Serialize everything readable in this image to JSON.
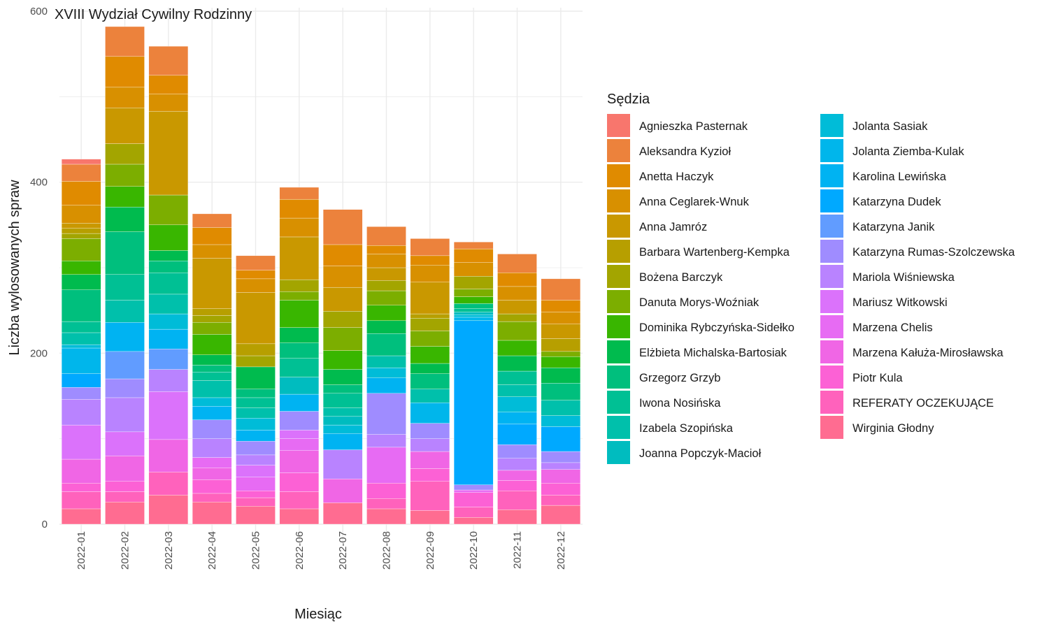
{
  "chart_data": {
    "type": "bar",
    "stacked": true,
    "title": "XVIII Wydział Cywilny Rodzinny",
    "xlabel": "Miesiąc",
    "ylabel": "Liczba wylosowanych spraw",
    "ylim": [
      0,
      600
    ],
    "yticks": [
      0,
      200,
      400,
      600
    ],
    "grid": true,
    "legend_title": "Sędzia",
    "legend_position": "right",
    "categories": [
      "2022-01",
      "2022-02",
      "2022-03",
      "2022-04",
      "2022-05",
      "2022-06",
      "2022-07",
      "2022-08",
      "2022-09",
      "2022-10",
      "2022-11",
      "2022-12"
    ],
    "series": [
      {
        "name": "Agnieszka Pasternak",
        "color": "#F8766D",
        "values": [
          6,
          0,
          0,
          0,
          0,
          0,
          0,
          0,
          0,
          0,
          0,
          0
        ]
      },
      {
        "name": "Aleksandra Kyzioł",
        "color": "#EC823C",
        "values": [
          20,
          35,
          34,
          16,
          17,
          14,
          41,
          22,
          20,
          8,
          22,
          25
        ]
      },
      {
        "name": "Anetta Haczyk",
        "color": "#E08B00",
        "values": [
          28,
          36,
          22,
          20,
          10,
          22,
          25,
          10,
          11,
          16,
          16,
          14
        ]
      },
      {
        "name": "Anna Ceglarek-Wnuk",
        "color": "#D89000",
        "values": [
          21,
          24,
          20,
          16,
          16,
          22,
          25,
          16,
          20,
          16,
          16,
          14
        ]
      },
      {
        "name": "Anna Jamróz",
        "color": "#C99800",
        "values": [
          6,
          42,
          98,
          59,
          60,
          50,
          28,
          15,
          37,
          0,
          16,
          17
        ]
      },
      {
        "name": "Barbara Wartenberg-Kempka",
        "color": "#B79F00",
        "values": [
          6,
          0,
          0,
          8,
          14,
          0,
          0,
          0,
          5,
          0,
          0,
          15
        ]
      },
      {
        "name": "Bożena Barczyk",
        "color": "#A3A500",
        "values": [
          6,
          24,
          0,
          8,
          13,
          14,
          19,
          12,
          15,
          15,
          9,
          0
        ]
      },
      {
        "name": "Danuta Morys-Woźniak",
        "color": "#7CAE00",
        "values": [
          26,
          26,
          35,
          14,
          0,
          10,
          27,
          17,
          18,
          9,
          22,
          6
        ]
      },
      {
        "name": "Dominika Rybczyńska-Sidełko",
        "color": "#39B600",
        "values": [
          16,
          24,
          30,
          24,
          0,
          32,
          22,
          18,
          20,
          8,
          18,
          13
        ]
      },
      {
        "name": "Elżbieta Michalska-Bartosiak",
        "color": "#00BB4E",
        "values": [
          18,
          29,
          12,
          12,
          26,
          18,
          18,
          15,
          12,
          0,
          18,
          18
        ]
      },
      {
        "name": "Grzegorz Grzyb",
        "color": "#00BF7D",
        "values": [
          37,
          50,
          14,
          8,
          10,
          18,
          10,
          26,
          18,
          6,
          0,
          20
        ]
      },
      {
        "name": "Iwona Nosińska",
        "color": "#00C094",
        "values": [
          13,
          30,
          25,
          10,
          12,
          22,
          17,
          0,
          0,
          4,
          16,
          0
        ]
      },
      {
        "name": "Izabela Szopińska",
        "color": "#00C0AB",
        "values": [
          14,
          26,
          23,
          20,
          12,
          0,
          10,
          14,
          16,
          0,
          14,
          18
        ]
      },
      {
        "name": "Joanna Popczyk-Macioł",
        "color": "#00BCBF",
        "values": [
          0,
          0,
          0,
          0,
          0,
          20,
          10,
          0,
          0,
          3,
          0,
          0
        ]
      },
      {
        "name": "Jolanta Sasiak",
        "color": "#00BCD8",
        "values": [
          4,
          0,
          18,
          10,
          14,
          0,
          10,
          12,
          0,
          3,
          18,
          13
        ]
      },
      {
        "name": "Jolanta Ziemba-Kulak",
        "color": "#00B6EB",
        "values": [
          30,
          0,
          0,
          0,
          0,
          0,
          0,
          0,
          24,
          4,
          0,
          0
        ]
      },
      {
        "name": "Karolina Lewińska",
        "color": "#00B3F2",
        "values": [
          0,
          34,
          23,
          16,
          13,
          20,
          19,
          18,
          0,
          0,
          14,
          0
        ]
      },
      {
        "name": "Katarzyna Dudek",
        "color": "#00A9FF",
        "values": [
          16,
          0,
          0,
          0,
          0,
          0,
          0,
          0,
          0,
          192,
          24,
          29
        ]
      },
      {
        "name": "Katarzyna Janik",
        "color": "#619CFF",
        "values": [
          0,
          32,
          24,
          0,
          0,
          0,
          0,
          0,
          0,
          0,
          0,
          0
        ]
      },
      {
        "name": "Katarzyna Rumas-Szolczewska",
        "color": "#9F8CFF",
        "values": [
          14,
          22,
          0,
          22,
          16,
          22,
          0,
          48,
          18,
          6,
          16,
          13
        ]
      },
      {
        "name": "Mariola Wiśniewska",
        "color": "#B983FF",
        "values": [
          30,
          40,
          26,
          22,
          12,
          0,
          34,
          15,
          15,
          0,
          14,
          8
        ]
      },
      {
        "name": "Mariusz Witkowski",
        "color": "#DB72FB",
        "values": [
          40,
          28,
          56,
          0,
          14,
          10,
          0,
          0,
          0,
          0,
          0,
          0
        ]
      },
      {
        "name": "Marzena Chelis",
        "color": "#E76BF3",
        "values": [
          0,
          0,
          0,
          12,
          16,
          14,
          0,
          42,
          0,
          3,
          0,
          0
        ]
      },
      {
        "name": "Marzena Kałuża-Mirosławska",
        "color": "#F066E5",
        "values": [
          28,
          30,
          38,
          14,
          0,
          26,
          28,
          0,
          20,
          0,
          12,
          16
        ]
      },
      {
        "name": "Piotr Kula",
        "color": "#FC61D5",
        "values": [
          10,
          12,
          0,
          16,
          8,
          22,
          0,
          18,
          15,
          17,
          12,
          14
        ]
      },
      {
        "name": "REFERATY OCZEKUJĄCE",
        "color": "#FF62BC",
        "values": [
          20,
          12,
          27,
          10,
          10,
          20,
          0,
          12,
          34,
          12,
          22,
          12
        ]
      },
      {
        "name": "Wirginia Głodny",
        "color": "#FF6C91",
        "values": [
          18,
          26,
          34,
          26,
          21,
          18,
          25,
          18,
          16,
          8,
          17,
          22
        ]
      }
    ]
  }
}
